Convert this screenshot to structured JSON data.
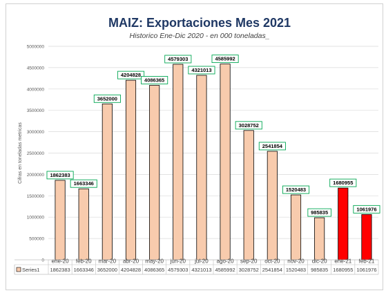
{
  "chart_data": {
    "type": "bar",
    "title": "MAIZ: Exportaciones Mes 2021",
    "subtitle": "Historico  Ene-Dic 2020 - en 000 toneladas_",
    "ylabel": "Cifras en toneladas metricas",
    "xlabel": "",
    "ylim": [
      0,
      5000000
    ],
    "yticks": [
      "0",
      "500000",
      "1000000",
      "1500000",
      "2000000",
      "2500000",
      "3000000",
      "3500000",
      "4000000",
      "4500000",
      "5000000"
    ],
    "categories": [
      "ene-20",
      "feb-20",
      "mar-20",
      "abr-20",
      "may-20",
      "jun-20",
      "jul-20",
      "ago-20",
      "sep-20",
      "oct-20",
      "nov-20",
      "dic-20",
      "ene-21",
      "feb-21"
    ],
    "series": [
      {
        "name": "Series1",
        "values": [
          1862383,
          1663346,
          3652000,
          4204828,
          4086365,
          4579303,
          4321013,
          4585992,
          3028752,
          2541854,
          1520483,
          985835,
          1680955,
          1061976
        ],
        "labels": [
          "1862383",
          "1663346",
          "3652000",
          "4204828",
          "4086365",
          "4579303",
          "4321013",
          "4585992",
          "3028752",
          "2541854",
          "1520483",
          "985835",
          "1680955",
          "1061976"
        ]
      }
    ],
    "colors": {
      "bar": "#f8cbad",
      "highlight": "#ff0000",
      "bar_border": "#000000",
      "label_border": "#00a651",
      "title": "#1f3864"
    },
    "highlighted_categories": [
      "ene-21",
      "feb-21"
    ],
    "grid": true,
    "data_table": true
  }
}
